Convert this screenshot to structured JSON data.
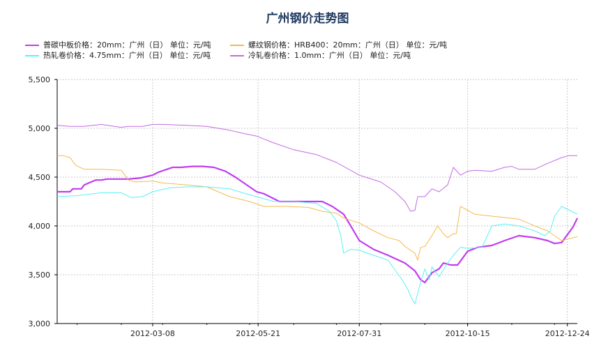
{
  "chart_data": {
    "type": "line",
    "title": "广州钢价走势图",
    "xlabel": "",
    "ylabel": "",
    "x_range": [
      "2012-01-01",
      "2012-12-31"
    ],
    "ylim": [
      3000,
      5500
    ],
    "yticks": [
      "3,000",
      "3,500",
      "4,000",
      "4,500",
      "5,000",
      "5,500"
    ],
    "ytick_values": [
      3000,
      3500,
      4000,
      4500,
      5000,
      5500
    ],
    "xticks": [
      "2012-03-08",
      "2012-05-21",
      "2012-07-31",
      "2012-10-15",
      "2012-12-24"
    ],
    "grid": true,
    "legend_position": "top-left",
    "series": [
      {
        "name": "普碳中板价格：20mm：广州（日） 单位：元/吨",
        "color": "#c13cf0",
        "x": [
          "2012-01-01",
          "2012-01-10",
          "2012-01-12",
          "2012-01-18",
          "2012-01-20",
          "2012-01-28",
          "2012-02-01",
          "2012-02-05",
          "2012-02-10",
          "2012-02-20",
          "2012-02-28",
          "2012-03-02",
          "2012-03-08",
          "2012-03-12",
          "2012-03-18",
          "2012-03-22",
          "2012-03-28",
          "2012-04-05",
          "2012-04-12",
          "2012-04-20",
          "2012-04-28",
          "2012-05-05",
          "2012-05-10",
          "2012-05-15",
          "2012-05-20",
          "2012-05-25",
          "2012-06-05",
          "2012-06-15",
          "2012-06-25",
          "2012-07-05",
          "2012-07-12",
          "2012-07-20",
          "2012-07-25",
          "2012-07-31",
          "2012-08-10",
          "2012-08-20",
          "2012-09-01",
          "2012-09-08",
          "2012-09-12",
          "2012-09-15",
          "2012-09-20",
          "2012-09-25",
          "2012-09-28",
          "2012-10-03",
          "2012-10-08",
          "2012-10-12",
          "2012-10-15",
          "2012-10-22",
          "2012-11-01",
          "2012-11-10",
          "2012-11-20",
          "2012-12-01",
          "2012-12-10",
          "2012-12-15",
          "2012-12-20",
          "2012-12-28",
          "2012-12-31"
        ],
        "values": [
          4350,
          4350,
          4380,
          4380,
          4420,
          4470,
          4470,
          4480,
          4480,
          4480,
          4490,
          4500,
          4520,
          4550,
          4580,
          4600,
          4600,
          4610,
          4610,
          4600,
          4560,
          4500,
          4450,
          4400,
          4350,
          4330,
          4250,
          4250,
          4250,
          4250,
          4200,
          4120,
          4000,
          3850,
          3760,
          3700,
          3620,
          3540,
          3450,
          3420,
          3520,
          3560,
          3620,
          3600,
          3600,
          3680,
          3740,
          3780,
          3800,
          3850,
          3900,
          3880,
          3850,
          3820,
          3830,
          3990,
          4080
        ]
      },
      {
        "name": "螺纹钢价格：HRB400：20mm：广州（日） 单位：元/吨",
        "color": "#f5b94e",
        "x": [
          "2012-01-01",
          "2012-01-05",
          "2012-01-10",
          "2012-01-14",
          "2012-01-20",
          "2012-02-01",
          "2012-02-15",
          "2012-02-20",
          "2012-02-25",
          "2012-03-08",
          "2012-03-15",
          "2012-04-01",
          "2012-04-15",
          "2012-05-01",
          "2012-05-15",
          "2012-05-25",
          "2012-06-10",
          "2012-06-25",
          "2012-07-05",
          "2012-07-15",
          "2012-07-20",
          "2012-07-31",
          "2012-08-10",
          "2012-08-20",
          "2012-08-28",
          "2012-09-01",
          "2012-09-08",
          "2012-09-10",
          "2012-09-12",
          "2012-09-15",
          "2012-09-20",
          "2012-09-24",
          "2012-09-28",
          "2012-10-01",
          "2012-10-05",
          "2012-10-07",
          "2012-10-10",
          "2012-10-20",
          "2012-11-01",
          "2012-11-20",
          "2012-12-01",
          "2012-12-10",
          "2012-12-15",
          "2012-12-20",
          "2012-12-31"
        ],
        "values": [
          4720,
          4720,
          4700,
          4620,
          4580,
          4580,
          4570,
          4470,
          4450,
          4460,
          4440,
          4420,
          4400,
          4300,
          4250,
          4200,
          4200,
          4190,
          4150,
          4130,
          4080,
          4030,
          3950,
          3880,
          3850,
          3790,
          3720,
          3650,
          3780,
          3790,
          3900,
          4000,
          3920,
          3880,
          3920,
          3920,
          4200,
          4120,
          4100,
          4070,
          4000,
          3950,
          3900,
          3850,
          3890
        ]
      },
      {
        "name": "热轧卷价格：4.75mm：广州（日） 单位：元/吨",
        "color": "#59f0f7",
        "x": [
          "2012-01-01",
          "2012-01-15",
          "2012-02-01",
          "2012-02-15",
          "2012-02-22",
          "2012-03-01",
          "2012-03-08",
          "2012-03-20",
          "2012-04-01",
          "2012-04-15",
          "2012-05-01",
          "2012-05-10",
          "2012-05-20",
          "2012-06-01",
          "2012-06-15",
          "2012-07-01",
          "2012-07-10",
          "2012-07-15",
          "2012-07-18",
          "2012-07-20",
          "2012-07-25",
          "2012-07-31",
          "2012-08-10",
          "2012-08-20",
          "2012-08-25",
          "2012-08-30",
          "2012-09-03",
          "2012-09-06",
          "2012-09-08",
          "2012-09-12",
          "2012-09-15",
          "2012-09-18",
          "2012-09-20",
          "2012-09-25",
          "2012-10-01",
          "2012-10-05",
          "2012-10-10",
          "2012-10-15",
          "2012-10-25",
          "2012-11-01",
          "2012-11-10",
          "2012-11-20",
          "2012-12-01",
          "2012-12-08",
          "2012-12-12",
          "2012-12-15",
          "2012-12-20",
          "2012-12-31"
        ],
        "values": [
          4300,
          4310,
          4340,
          4340,
          4290,
          4300,
          4350,
          4390,
          4400,
          4400,
          4380,
          4340,
          4300,
          4250,
          4250,
          4230,
          4150,
          4050,
          3900,
          3720,
          3760,
          3750,
          3700,
          3650,
          3550,
          3450,
          3350,
          3250,
          3200,
          3420,
          3560,
          3450,
          3580,
          3480,
          3620,
          3700,
          3780,
          3770,
          3780,
          4000,
          4020,
          4000,
          3950,
          3900,
          3950,
          4100,
          4200,
          4120
        ]
      },
      {
        "name": "冷轧卷价格：1.0mm：广州（日） 单位：元/吨",
        "color": "#c06be2",
        "x": [
          "2012-01-01",
          "2012-01-10",
          "2012-01-20",
          "2012-02-01",
          "2012-02-10",
          "2012-02-15",
          "2012-02-20",
          "2012-03-01",
          "2012-03-08",
          "2012-03-15",
          "2012-04-01",
          "2012-04-15",
          "2012-05-01",
          "2012-05-10",
          "2012-05-20",
          "2012-06-01",
          "2012-06-15",
          "2012-07-01",
          "2012-07-15",
          "2012-07-31",
          "2012-08-15",
          "2012-08-25",
          "2012-09-01",
          "2012-09-05",
          "2012-09-08",
          "2012-09-10",
          "2012-09-15",
          "2012-09-20",
          "2012-09-25",
          "2012-10-01",
          "2012-10-05",
          "2012-10-10",
          "2012-10-15",
          "2012-10-20",
          "2012-11-01",
          "2012-11-10",
          "2012-11-15",
          "2012-11-20",
          "2012-12-01",
          "2012-12-10",
          "2012-12-20",
          "2012-12-25",
          "2012-12-31"
        ],
        "values": [
          5030,
          5020,
          5020,
          5040,
          5020,
          5010,
          5020,
          5020,
          5040,
          5040,
          5030,
          5020,
          4980,
          4950,
          4920,
          4850,
          4780,
          4730,
          4650,
          4520,
          4450,
          4350,
          4250,
          4150,
          4160,
          4300,
          4300,
          4380,
          4350,
          4420,
          4600,
          4520,
          4560,
          4570,
          4560,
          4600,
          4610,
          4580,
          4580,
          4640,
          4700,
          4720,
          4720
        ]
      }
    ]
  }
}
